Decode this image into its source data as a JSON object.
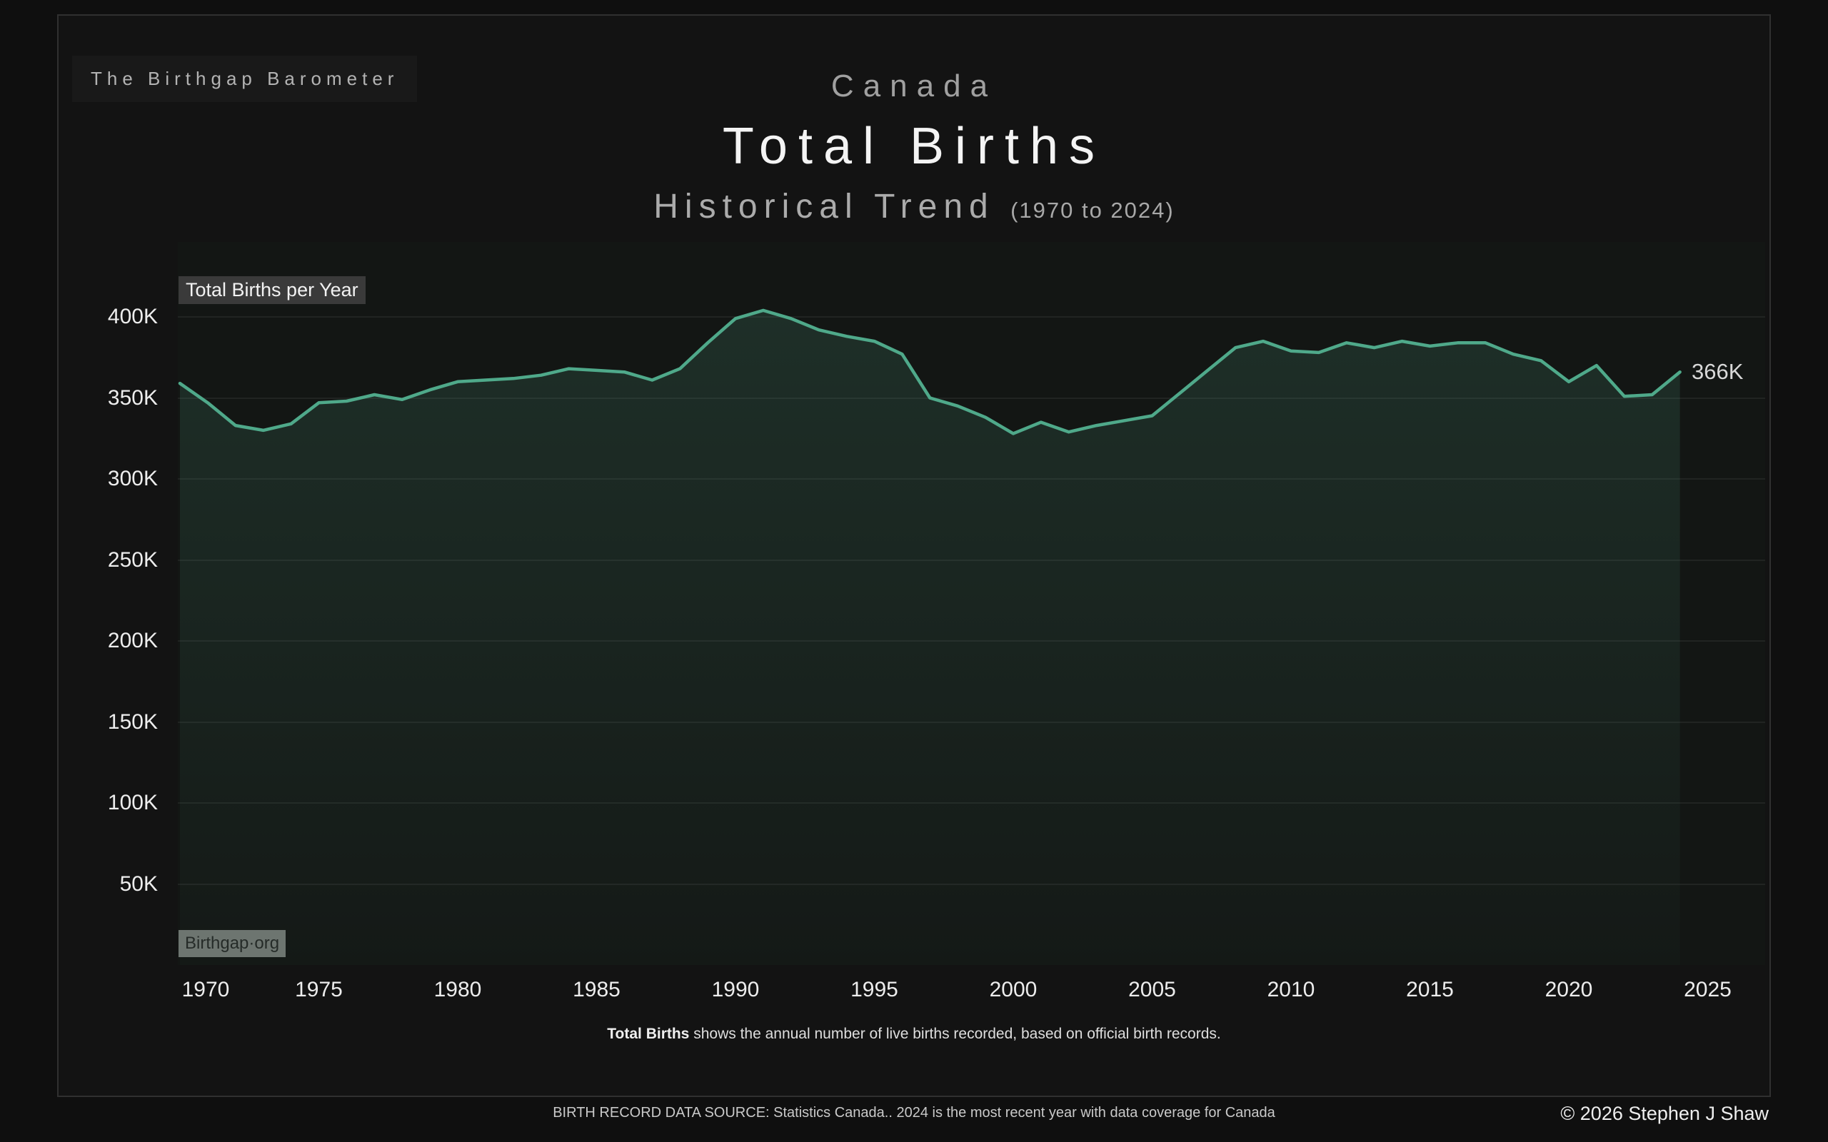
{
  "brand": {
    "label": "The Birthgap Barometer"
  },
  "header": {
    "country": "Canada",
    "title": "Total Births",
    "subtitle": "Historical Trend",
    "subtitle_range": "(1970 to 2024)"
  },
  "annotations": {
    "series_label": "Total Births per Year",
    "watermark": "Birthgap·org",
    "end_value_label": "366K"
  },
  "chart_data": {
    "type": "area",
    "title": "Total Births per Year",
    "xlabel": "",
    "ylabel": "",
    "unit": "thousands of births",
    "ylim": [
      0,
      425
    ],
    "grid": true,
    "legend_position": "none",
    "x_tick_years": [
      1970,
      1975,
      1980,
      1985,
      1990,
      1995,
      2000,
      2005,
      2010,
      2015,
      2020,
      2025
    ],
    "y_tick_values": [
      50,
      100,
      150,
      200,
      250,
      300,
      350,
      400
    ],
    "y_tick_labels": [
      "50K",
      "100K",
      "150K",
      "200K",
      "250K",
      "300K",
      "350K",
      "400K"
    ],
    "years": [
      1970,
      1971,
      1972,
      1973,
      1974,
      1975,
      1976,
      1977,
      1978,
      1979,
      1980,
      1981,
      1982,
      1983,
      1984,
      1985,
      1986,
      1987,
      1988,
      1989,
      1990,
      1991,
      1992,
      1993,
      1994,
      1995,
      1996,
      1997,
      1998,
      1999,
      2000,
      2001,
      2002,
      2003,
      2004,
      2005,
      2006,
      2007,
      2008,
      2009,
      2010,
      2011,
      2012,
      2013,
      2014,
      2015,
      2016,
      2017,
      2018,
      2019,
      2020,
      2021,
      2022,
      2023,
      2024
    ],
    "values_thousands": [
      359,
      347,
      333,
      330,
      334,
      347,
      348,
      352,
      349,
      355,
      360,
      361,
      362,
      364,
      368,
      367,
      366,
      361,
      368,
      384,
      399,
      404,
      399,
      392,
      388,
      385,
      377,
      350,
      345,
      338,
      328,
      335,
      329,
      333,
      336,
      339,
      353,
      367,
      381,
      385,
      379,
      378,
      384,
      381,
      385,
      382,
      384,
      384,
      377,
      373,
      360,
      370,
      351,
      352,
      366
    ],
    "last_point_label": "366K"
  },
  "caption": {
    "bold": "Total Births",
    "rest": " shows the annual number of live births recorded, based on official birth records."
  },
  "footer": {
    "source": "BIRTH RECORD DATA SOURCE: Statistics Canada.. 2024 is the most recent year with data coverage for Canada",
    "copyright": "© 2026 Stephen J Shaw"
  },
  "colors": {
    "page_bg": "#0f0f0f",
    "panel_bg": "#131313",
    "panel_border": "#303030",
    "plot_bg": "#131614",
    "gridline": "#212422",
    "line": "#4fa98a",
    "area_top": "rgba(84,171,139,0.17)",
    "area_bottom": "rgba(84,171,139,0.02)",
    "tick_label": "#ededed"
  }
}
